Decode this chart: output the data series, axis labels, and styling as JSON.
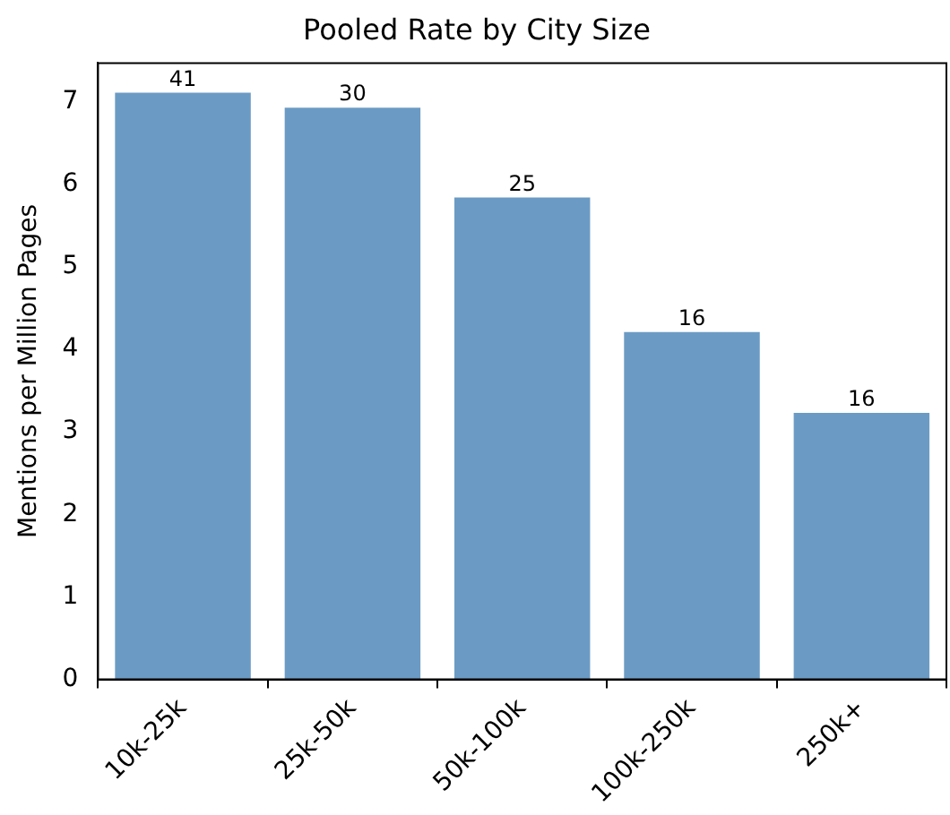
{
  "chart_data": {
    "type": "bar",
    "title": "Pooled Rate by City Size",
    "ylabel": "Mentions per Million Pages",
    "categories": [
      "10k-25k",
      "25k-50k",
      "50k-100k",
      "100k-250k",
      "250k+"
    ],
    "values": [
      7.11,
      6.93,
      5.84,
      4.21,
      3.23
    ],
    "annotations": [
      {
        "text": "41",
        "x": "10k-25k",
        "y": 7.11
      },
      {
        "text": "30",
        "x": "25k-50k",
        "y": 6.93
      },
      {
        "text": "25",
        "x": "50k-100k",
        "y": 5.84
      },
      {
        "text": "16",
        "x": "100k-250k",
        "y": 4.21
      },
      {
        "text": "16",
        "x": "250k+",
        "y": 3.23
      }
    ],
    "color": "#6b9bc4",
    "ylim": [
      0,
      7.47
    ],
    "yticks": [
      0,
      1,
      2,
      3,
      4,
      5,
      6,
      7
    ],
    "grid": false,
    "legend": false
  }
}
